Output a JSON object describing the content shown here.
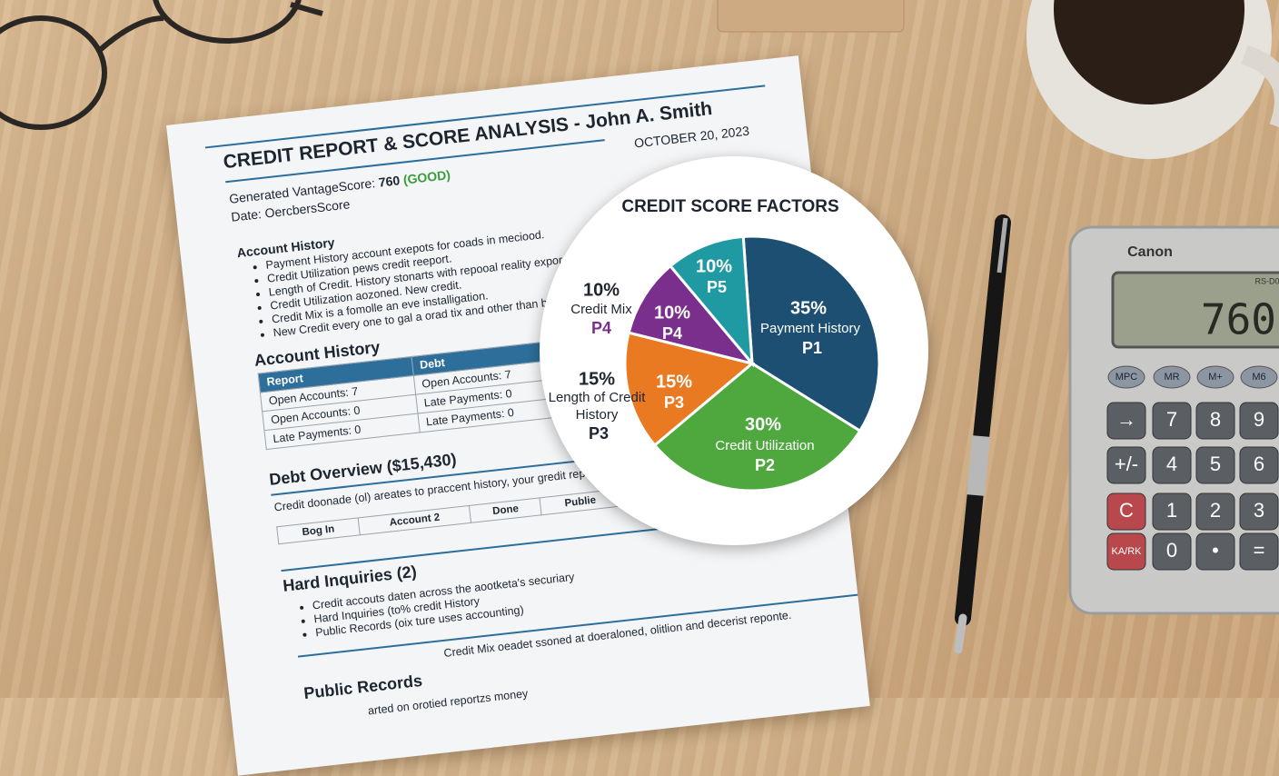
{
  "document": {
    "title": "CREDIT REPORT & SCORE ANALYSIS - John A. Smith",
    "date": "OCTOBER 20, 2023",
    "score_label": "Generated VantageScore:",
    "score": "760",
    "score_rating": "(GOOD)",
    "date_line": "Date: OercbersScore",
    "summary": {
      "heading": "Account History",
      "bullets": [
        "Payment History account exepots for coads in meciood.",
        "Credit Utilization pews credit reeport.",
        "Length of Credit. History stonarts with repooal reality expord the",
        "Credit Utilization aozoned. New credit.",
        "Credit Mix is a fomolle an eve installigation.",
        "New Credit every one to gal a orad tix and other than bantl"
      ]
    },
    "account_table": {
      "heading": "Account History",
      "headers": [
        "Report",
        "Debt"
      ],
      "rows": [
        [
          "Open Accounts: 7",
          "Open Accounts: 7"
        ],
        [
          "Open Accounts: 0",
          "Late Payments: 0"
        ],
        [
          "Late Payments: 0",
          "Late Payments: 0"
        ]
      ]
    },
    "debt": {
      "heading": "Debt Overview ($15,430)",
      "text": "Credit doonade (ol) areates to praccent history, your gredit rep",
      "row": [
        "Bog In",
        "Account 2",
        "Done",
        "Publie"
      ]
    },
    "inquiries": {
      "heading": "Hard Inquiries (2)",
      "bullets": [
        "Credit accouts daten across the aootketa's securiary",
        "Hard Inquiries (to% credit History",
        "Public Records (oix ture uses accounting)"
      ]
    },
    "footer_text": "Credit Mix oeadet ssoned at doeraloned, olitlion and decerist reponte.",
    "public": {
      "heading": "Public Records",
      "text": "arted on orotied reportzs money"
    }
  },
  "chart_data": {
    "type": "pie",
    "title": "CREDIT SCORE FACTORS",
    "categories": [
      "Payment History",
      "Credit Utilization",
      "Length of Credit History",
      "Credit Mix",
      null
    ],
    "codes": [
      "P1",
      "P2",
      "P3",
      "P4",
      "P5"
    ],
    "values": [
      35,
      30,
      15,
      10,
      10
    ],
    "value_labels": [
      "35%",
      "30%",
      "15%",
      "10%",
      "10%"
    ],
    "colors": [
      "#1c4f72",
      "#4ea83e",
      "#e97a22",
      "#7b2f8c",
      "#1f9aa3"
    ]
  },
  "calculator": {
    "brand": "Canon",
    "model": "RS-D0",
    "display": "760",
    "keys": [
      "MPC",
      "MR",
      "M+",
      "M6",
      "→",
      "7",
      "8",
      "9",
      "+/-",
      "4",
      "5",
      "6",
      "C",
      "1",
      "2",
      "3",
      "KA/RK",
      "0",
      "•",
      "="
    ]
  }
}
